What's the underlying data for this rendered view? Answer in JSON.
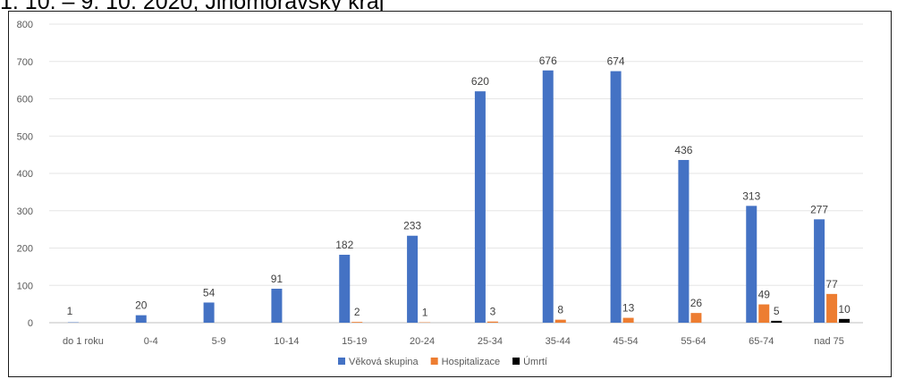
{
  "title": "1. 10. – 9. 10. 2020, Jihomoravský kraj",
  "chart_data": {
    "type": "bar",
    "title": "1. 10. – 9. 10. 2020, Jihomoravský kraj",
    "xlabel": "",
    "ylabel": "",
    "ylim": [
      0,
      800
    ],
    "yticks": [
      0,
      100,
      200,
      300,
      400,
      500,
      600,
      700,
      800
    ],
    "grid": true,
    "legend": "bottom",
    "categories": [
      "do 1 roku",
      "0-4",
      "5-9",
      "10-14",
      "15-19",
      "20-24",
      "25-34",
      "35-44",
      "45-54",
      "55-64",
      "65-74",
      "nad 75"
    ],
    "series": [
      {
        "name": "Věková skupina",
        "color": "#4472C4",
        "values": [
          1,
          20,
          54,
          91,
          182,
          233,
          620,
          676,
          674,
          436,
          313,
          277
        ],
        "labels": [
          "1",
          "20",
          "54",
          "91",
          "182",
          "233",
          "620",
          "676",
          "674",
          "436",
          "313",
          "277"
        ]
      },
      {
        "name": "Hospitalizace",
        "color": "#ED7D31",
        "values": [
          0,
          0,
          0,
          0,
          2,
          1,
          3,
          8,
          13,
          26,
          49,
          77
        ],
        "labels": [
          "",
          "",
          "",
          "",
          "2",
          "1",
          "3",
          "8",
          "13",
          "26",
          "49",
          "77"
        ]
      },
      {
        "name": "Úmrtí",
        "color": "#000000",
        "values": [
          0,
          0,
          0,
          0,
          0,
          0,
          0,
          0,
          0,
          0,
          5,
          10
        ],
        "labels": [
          "",
          "",
          "",
          "",
          "",
          "",
          "",
          "",
          "",
          "",
          "5",
          "10"
        ]
      }
    ]
  }
}
